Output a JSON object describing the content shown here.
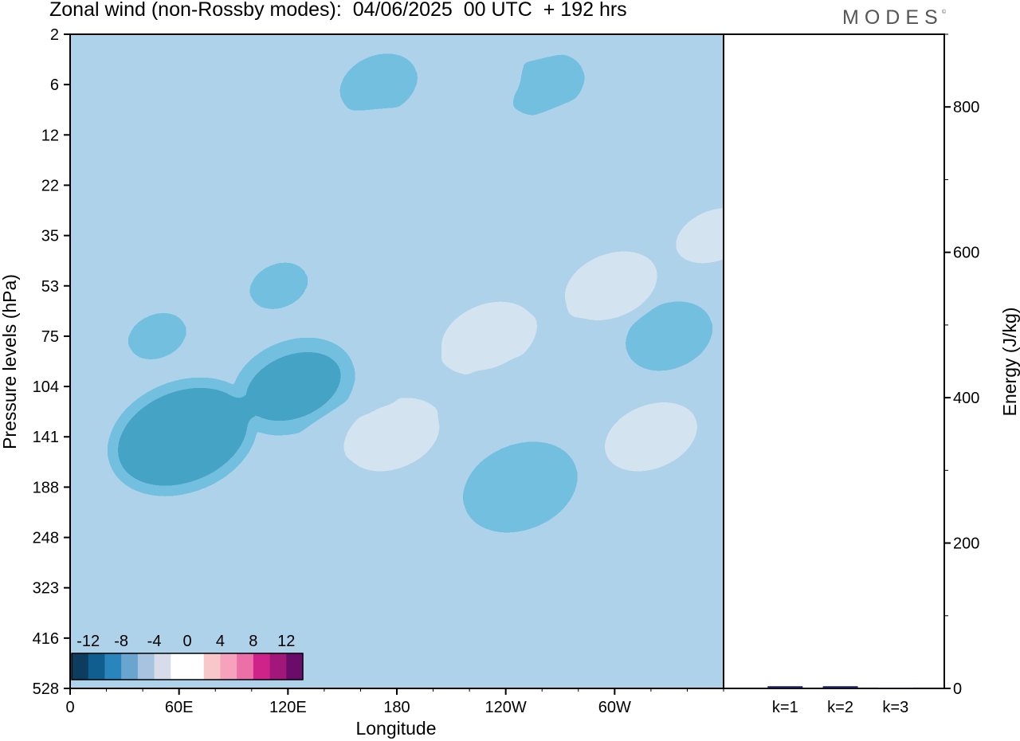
{
  "title": "Zonal wind (non-Rossby modes):  04/06/2025  00 UTC  + 192 hrs",
  "logo": "MODES",
  "logo_mark": "©",
  "chart_data": [
    {
      "type": "heatmap",
      "title": "Zonal wind (non-Rossby modes):  04/06/2025  00 UTC  + 192 hrs",
      "xlabel": "Longitude",
      "ylabel": "Pressure levels (hPa)",
      "x_ticks": [
        "0",
        "60E",
        "120E",
        "180",
        "120W",
        "60W"
      ],
      "x_tick_values": [
        0,
        60,
        120,
        180,
        240,
        300
      ],
      "xlim": [
        0,
        360
      ],
      "y_ticks": [
        "2",
        "6",
        "12",
        "22",
        "35",
        "53",
        "75",
        "104",
        "141",
        "188",
        "248",
        "323",
        "416",
        "528"
      ],
      "colorbar": {
        "labels": [
          "-12",
          "-8",
          "-4",
          "0",
          "4",
          "8",
          "12"
        ],
        "colors": [
          "#0c3c5e",
          "#0f5e8f",
          "#2b85bd",
          "#6aa5d0",
          "#a8c3e0",
          "#d6dcea",
          "#ffffff",
          "#ffffff",
          "#f8c7c8",
          "#f6a2bd",
          "#ec70a8",
          "#d0238a",
          "#a2187a",
          "#6b0c6a"
        ]
      },
      "features": [
        {
          "lon": 62,
          "level": "141",
          "value": -13
        },
        {
          "lon": 123,
          "level": "104",
          "value": -10
        },
        {
          "lon": 248,
          "level": "188",
          "value": -9
        },
        {
          "lon": 330,
          "level": "75",
          "value": -6
        },
        {
          "lon": 48,
          "level": "75",
          "value": -3
        },
        {
          "lon": 115,
          "level": "53",
          "value": -3
        },
        {
          "lon": 170,
          "level": "4",
          "value": -5
        },
        {
          "lon": 262,
          "level": "6",
          "value": -5
        },
        {
          "lon": 225,
          "level": "4",
          "value": 7
        },
        {
          "lon": 260,
          "level": "2",
          "value": 4
        },
        {
          "lon": 230,
          "level": "75",
          "value": 9
        },
        {
          "lon": 298,
          "level": "53",
          "value": 9
        },
        {
          "lon": 260,
          "level": "75",
          "value": 6
        },
        {
          "lon": 355,
          "level": "35",
          "value": 8
        },
        {
          "lon": 178,
          "level": "141",
          "value": 9
        },
        {
          "lon": 150,
          "level": "141",
          "value": 6
        },
        {
          "lon": 200,
          "level": "104",
          "value": 7
        },
        {
          "lon": 320,
          "level": "141",
          "value": 9
        },
        {
          "lon": 93,
          "level": "6",
          "value": 5
        },
        {
          "lon": 165,
          "level": "12",
          "value": 5
        },
        {
          "lon": 273,
          "level": "12",
          "value": 6
        },
        {
          "lon": 232,
          "level": "323",
          "value": 3
        }
      ]
    },
    {
      "type": "bar",
      "categories": [
        "k=1",
        "k=2",
        "k=3"
      ],
      "values": [
        3,
        3,
        1
      ],
      "ylabel": "Energy (J/kg)",
      "ylim": [
        0,
        900
      ],
      "y_ticks": [
        "0",
        "200",
        "400",
        "600",
        "800"
      ],
      "bar_color": "#1a1a55"
    }
  ]
}
